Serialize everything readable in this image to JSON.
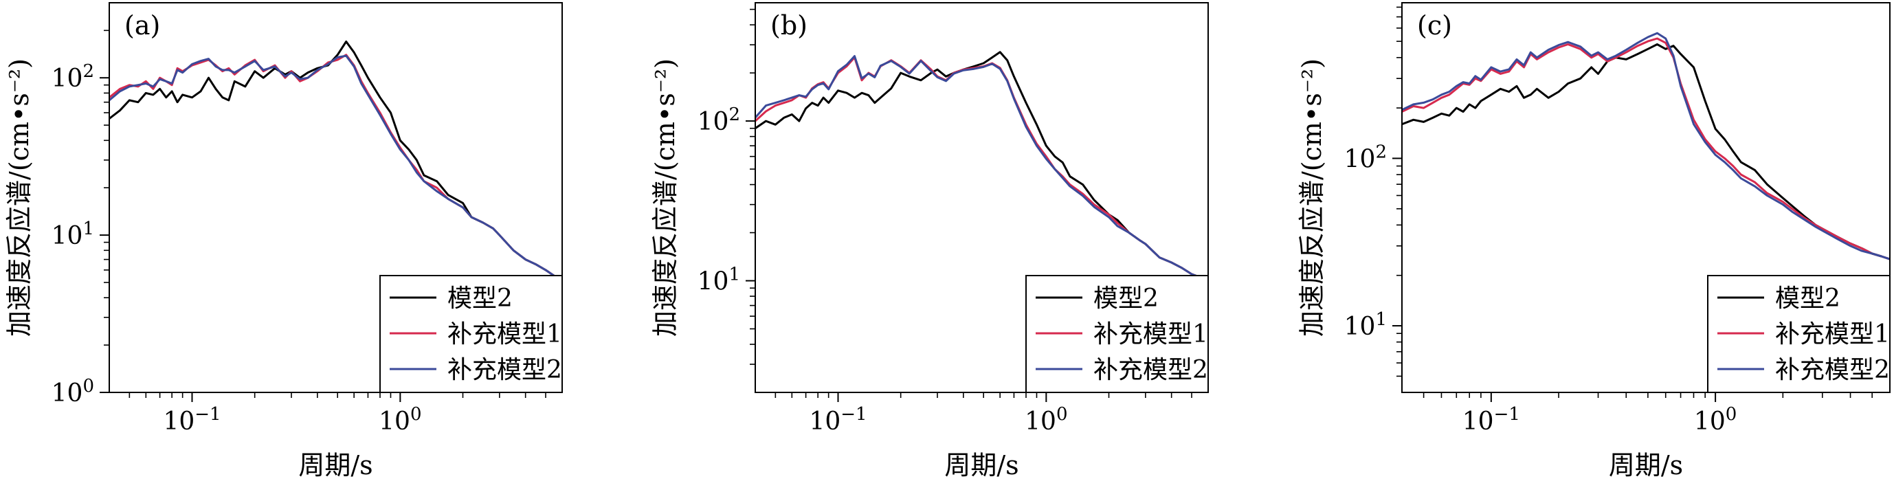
{
  "figure": {
    "colors": {
      "model2": "#000000",
      "supplement1": "#d62a4e",
      "supplement2": "#3b4a9a"
    }
  },
  "chart_data": [
    {
      "type": "line",
      "panel_label": "(a)",
      "xlabel": "周期/s",
      "ylabel": "加速度反应谱/(cm•s⁻²)",
      "xscale": "log",
      "yscale": "log",
      "xlim": [
        0.04,
        6.0
      ],
      "ylim": [
        1,
        300
      ],
      "xticks": [
        {
          "value": 0.1,
          "label": "10⁻¹"
        },
        {
          "value": 1,
          "label": "10⁰"
        }
      ],
      "yticks": [
        {
          "value": 1,
          "label": "10⁰"
        },
        {
          "value": 10,
          "label": "10¹"
        },
        {
          "value": 100,
          "label": "10²"
        }
      ],
      "legend_position": "lower-right",
      "series": [
        {
          "name": "模型2",
          "color_key": "model2",
          "x": [
            0.04,
            0.045,
            0.05,
            0.055,
            0.06,
            0.065,
            0.07,
            0.075,
            0.08,
            0.085,
            0.09,
            0.1,
            0.11,
            0.12,
            0.13,
            0.14,
            0.15,
            0.16,
            0.18,
            0.2,
            0.22,
            0.25,
            0.28,
            0.3,
            0.33,
            0.36,
            0.4,
            0.45,
            0.5,
            0.55,
            0.6,
            0.65,
            0.7,
            0.8,
            0.9,
            1.0,
            1.1,
            1.2,
            1.3,
            1.5,
            1.7,
            2.0,
            2.2,
            2.5,
            2.8,
            3.0,
            3.5,
            4.0,
            4.5,
            5.0,
            5.5,
            6.0
          ],
          "y": [
            55,
            62,
            72,
            70,
            80,
            78,
            85,
            75,
            82,
            70,
            78,
            75,
            82,
            100,
            85,
            75,
            72,
            95,
            88,
            110,
            100,
            115,
            105,
            110,
            100,
            108,
            115,
            120,
            140,
            170,
            145,
            120,
            100,
            75,
            60,
            40,
            35,
            30,
            24,
            22,
            18,
            16,
            13,
            12,
            11,
            10,
            8,
            7,
            6.5,
            6,
            5.5,
            5
          ]
        },
        {
          "name": "补充模型1",
          "color_key": "supplement1",
          "x": [
            0.04,
            0.045,
            0.05,
            0.055,
            0.06,
            0.065,
            0.07,
            0.075,
            0.08,
            0.085,
            0.09,
            0.1,
            0.11,
            0.12,
            0.13,
            0.14,
            0.15,
            0.16,
            0.18,
            0.2,
            0.22,
            0.25,
            0.28,
            0.3,
            0.33,
            0.36,
            0.4,
            0.45,
            0.5,
            0.55,
            0.6,
            0.65,
            0.7,
            0.8,
            0.9,
            1.0,
            1.1,
            1.2,
            1.3,
            1.5,
            1.7,
            2.0,
            2.2,
            2.5,
            2.8,
            3.0,
            3.5,
            4.0,
            4.5,
            5.0,
            5.5,
            6.0
          ],
          "y": [
            75,
            85,
            90,
            88,
            95,
            85,
            100,
            95,
            90,
            115,
            110,
            120,
            125,
            130,
            120,
            110,
            115,
            105,
            120,
            130,
            110,
            120,
            100,
            110,
            95,
            100,
            110,
            125,
            130,
            140,
            120,
            95,
            80,
            60,
            45,
            36,
            30,
            26,
            22,
            20,
            17,
            15,
            13,
            12,
            11,
            10,
            8,
            7,
            6.5,
            6,
            5.5,
            5
          ]
        },
        {
          "name": "补充模型2",
          "color_key": "supplement2",
          "x": [
            0.04,
            0.045,
            0.05,
            0.055,
            0.06,
            0.065,
            0.07,
            0.075,
            0.08,
            0.085,
            0.09,
            0.1,
            0.11,
            0.12,
            0.13,
            0.14,
            0.15,
            0.16,
            0.18,
            0.2,
            0.22,
            0.25,
            0.28,
            0.3,
            0.33,
            0.36,
            0.4,
            0.45,
            0.5,
            0.55,
            0.6,
            0.65,
            0.7,
            0.8,
            0.9,
            1.0,
            1.1,
            1.2,
            1.3,
            1.5,
            1.7,
            2.0,
            2.2,
            2.5,
            2.8,
            3.0,
            3.5,
            4.0,
            4.5,
            5.0,
            5.5,
            6.0
          ],
          "y": [
            72,
            82,
            88,
            90,
            92,
            88,
            98,
            95,
            92,
            112,
            108,
            122,
            128,
            132,
            118,
            112,
            112,
            108,
            118,
            128,
            112,
            118,
            102,
            108,
            98,
            100,
            112,
            122,
            135,
            138,
            118,
            92,
            78,
            58,
            44,
            35,
            30,
            25,
            22,
            19,
            17,
            15,
            13,
            12,
            11,
            10,
            8,
            7,
            6.5,
            6,
            5.5,
            5
          ]
        }
      ]
    },
    {
      "type": "line",
      "panel_label": "(b)",
      "xlabel": "周期/s",
      "ylabel": "加速度反应谱/(cm•s⁻²)",
      "xscale": "log",
      "yscale": "log",
      "xlim": [
        0.04,
        6.0
      ],
      "ylim": [
        2,
        550
      ],
      "xticks": [
        {
          "value": 0.1,
          "label": "10⁻¹"
        },
        {
          "value": 1,
          "label": "10⁰"
        }
      ],
      "yticks": [
        {
          "value": 10,
          "label": "10¹"
        },
        {
          "value": 100,
          "label": "10²"
        }
      ],
      "legend_position": "lower-right",
      "series": [
        {
          "name": "模型2",
          "color_key": "model2",
          "x": [
            0.04,
            0.045,
            0.05,
            0.055,
            0.06,
            0.065,
            0.07,
            0.075,
            0.08,
            0.085,
            0.09,
            0.1,
            0.11,
            0.12,
            0.13,
            0.14,
            0.15,
            0.16,
            0.18,
            0.2,
            0.22,
            0.25,
            0.28,
            0.3,
            0.33,
            0.36,
            0.4,
            0.45,
            0.5,
            0.55,
            0.6,
            0.65,
            0.7,
            0.8,
            0.9,
            1.0,
            1.1,
            1.2,
            1.3,
            1.5,
            1.7,
            2.0,
            2.2,
            2.5,
            2.8,
            3.0,
            3.5,
            4.0,
            4.5,
            5.0,
            5.5,
            6.0
          ],
          "y": [
            90,
            100,
            95,
            105,
            110,
            100,
            120,
            130,
            125,
            140,
            130,
            155,
            150,
            140,
            150,
            145,
            130,
            140,
            160,
            200,
            190,
            180,
            200,
            210,
            190,
            200,
            210,
            220,
            230,
            250,
            270,
            240,
            190,
            130,
            95,
            70,
            60,
            55,
            45,
            40,
            32,
            26,
            24,
            20,
            18,
            17,
            14,
            13,
            12,
            11,
            10.5,
            10
          ]
        },
        {
          "name": "补充模型1",
          "color_key": "supplement1",
          "x": [
            0.04,
            0.045,
            0.05,
            0.055,
            0.06,
            0.065,
            0.07,
            0.075,
            0.08,
            0.085,
            0.09,
            0.1,
            0.11,
            0.12,
            0.13,
            0.14,
            0.15,
            0.16,
            0.18,
            0.2,
            0.22,
            0.25,
            0.28,
            0.3,
            0.33,
            0.36,
            0.4,
            0.45,
            0.5,
            0.55,
            0.6,
            0.65,
            0.7,
            0.8,
            0.9,
            1.0,
            1.1,
            1.2,
            1.3,
            1.5,
            1.7,
            2.0,
            2.2,
            2.5,
            2.8,
            3.0,
            3.5,
            4.0,
            4.5,
            5.0,
            5.5,
            6.0
          ],
          "y": [
            100,
            115,
            125,
            130,
            135,
            145,
            140,
            160,
            170,
            175,
            160,
            200,
            220,
            250,
            180,
            200,
            190,
            220,
            240,
            220,
            200,
            240,
            210,
            190,
            180,
            200,
            210,
            215,
            220,
            230,
            215,
            180,
            140,
            95,
            72,
            60,
            50,
            45,
            40,
            35,
            30,
            26,
            23,
            20,
            18,
            17,
            14,
            13,
            12,
            11,
            10.5,
            10
          ]
        },
        {
          "name": "补充模型2",
          "color_key": "supplement2",
          "x": [
            0.04,
            0.045,
            0.05,
            0.055,
            0.06,
            0.065,
            0.07,
            0.075,
            0.08,
            0.085,
            0.09,
            0.1,
            0.11,
            0.12,
            0.13,
            0.14,
            0.15,
            0.16,
            0.18,
            0.2,
            0.22,
            0.25,
            0.28,
            0.3,
            0.33,
            0.36,
            0.4,
            0.45,
            0.5,
            0.55,
            0.6,
            0.65,
            0.7,
            0.8,
            0.9,
            1.0,
            1.1,
            1.2,
            1.3,
            1.5,
            1.7,
            2.0,
            2.2,
            2.5,
            2.8,
            3.0,
            3.5,
            4.0,
            4.5,
            5.0,
            5.5,
            6.0
          ],
          "y": [
            105,
            125,
            130,
            135,
            140,
            145,
            142,
            158,
            168,
            172,
            158,
            205,
            225,
            255,
            185,
            198,
            188,
            222,
            238,
            218,
            198,
            238,
            205,
            188,
            178,
            198,
            208,
            212,
            218,
            228,
            212,
            178,
            138,
            92,
            70,
            58,
            50,
            44,
            39,
            34,
            29,
            25,
            22,
            20,
            18,
            17,
            14,
            13,
            12,
            11,
            10.5,
            10
          ]
        }
      ]
    },
    {
      "type": "line",
      "panel_label": "(c)",
      "xlabel": "周期/s",
      "ylabel": "加速度反应谱/(cm•s⁻²)",
      "xscale": "log",
      "yscale": "log",
      "xlim": [
        0.04,
        6.0
      ],
      "ylim": [
        4,
        850
      ],
      "xticks": [
        {
          "value": 0.1,
          "label": "10⁻¹"
        },
        {
          "value": 1,
          "label": "10⁰"
        }
      ],
      "yticks": [
        {
          "value": 10,
          "label": "10¹"
        },
        {
          "value": 100,
          "label": "10²"
        }
      ],
      "legend_position": "lower-right",
      "series": [
        {
          "name": "模型2",
          "color_key": "model2",
          "x": [
            0.04,
            0.045,
            0.05,
            0.055,
            0.06,
            0.065,
            0.07,
            0.075,
            0.08,
            0.085,
            0.09,
            0.1,
            0.11,
            0.12,
            0.13,
            0.14,
            0.15,
            0.16,
            0.18,
            0.2,
            0.22,
            0.25,
            0.28,
            0.3,
            0.33,
            0.36,
            0.4,
            0.45,
            0.5,
            0.55,
            0.6,
            0.65,
            0.7,
            0.8,
            0.9,
            1.0,
            1.1,
            1.2,
            1.3,
            1.5,
            1.7,
            2.0,
            2.2,
            2.5,
            2.8,
            3.0,
            3.5,
            4.0,
            4.5,
            5.0,
            5.5,
            6.0
          ],
          "y": [
            160,
            170,
            165,
            175,
            185,
            180,
            200,
            190,
            210,
            200,
            220,
            240,
            260,
            250,
            270,
            230,
            240,
            260,
            230,
            250,
            280,
            300,
            350,
            320,
            380,
            400,
            390,
            420,
            450,
            480,
            450,
            470,
            420,
            350,
            220,
            150,
            130,
            110,
            95,
            85,
            70,
            58,
            52,
            45,
            40,
            38,
            34,
            31,
            29,
            27,
            26,
            25
          ]
        },
        {
          "name": "补充模型1",
          "color_key": "supplement1",
          "x": [
            0.04,
            0.045,
            0.05,
            0.055,
            0.06,
            0.065,
            0.07,
            0.075,
            0.08,
            0.085,
            0.09,
            0.1,
            0.11,
            0.12,
            0.13,
            0.14,
            0.15,
            0.16,
            0.18,
            0.2,
            0.22,
            0.25,
            0.28,
            0.3,
            0.33,
            0.36,
            0.4,
            0.45,
            0.5,
            0.55,
            0.6,
            0.65,
            0.7,
            0.8,
            0.9,
            1.0,
            1.1,
            1.2,
            1.3,
            1.5,
            1.7,
            2.0,
            2.2,
            2.5,
            2.8,
            3.0,
            3.5,
            4.0,
            4.5,
            5.0,
            5.5,
            6.0
          ],
          "y": [
            190,
            205,
            200,
            215,
            230,
            240,
            260,
            280,
            275,
            300,
            290,
            340,
            320,
            330,
            380,
            350,
            420,
            390,
            430,
            460,
            480,
            450,
            400,
            420,
            380,
            400,
            430,
            470,
            500,
            520,
            490,
            400,
            280,
            170,
            130,
            110,
            100,
            90,
            80,
            72,
            62,
            55,
            50,
            44,
            40,
            38,
            34,
            31,
            29,
            27,
            26,
            25
          ]
        },
        {
          "name": "补充模型2",
          "color_key": "supplement2",
          "x": [
            0.04,
            0.045,
            0.05,
            0.055,
            0.06,
            0.065,
            0.07,
            0.075,
            0.08,
            0.085,
            0.09,
            0.1,
            0.11,
            0.12,
            0.13,
            0.14,
            0.15,
            0.16,
            0.18,
            0.2,
            0.22,
            0.25,
            0.28,
            0.3,
            0.33,
            0.36,
            0.4,
            0.45,
            0.5,
            0.55,
            0.6,
            0.65,
            0.7,
            0.8,
            0.9,
            1.0,
            1.1,
            1.2,
            1.3,
            1.5,
            1.7,
            2.0,
            2.2,
            2.5,
            2.8,
            3.0,
            3.5,
            4.0,
            4.5,
            5.0,
            5.5,
            6.0
          ],
          "y": [
            195,
            210,
            215,
            225,
            240,
            250,
            270,
            285,
            280,
            310,
            295,
            350,
            330,
            340,
            390,
            360,
            430,
            400,
            445,
            475,
            495,
            465,
            410,
            430,
            390,
            410,
            445,
            490,
            530,
            560,
            520,
            410,
            270,
            160,
            125,
            105,
            95,
            85,
            76,
            68,
            60,
            53,
            48,
            43,
            39,
            37,
            33,
            30,
            28,
            27,
            26,
            25
          ]
        }
      ]
    }
  ]
}
